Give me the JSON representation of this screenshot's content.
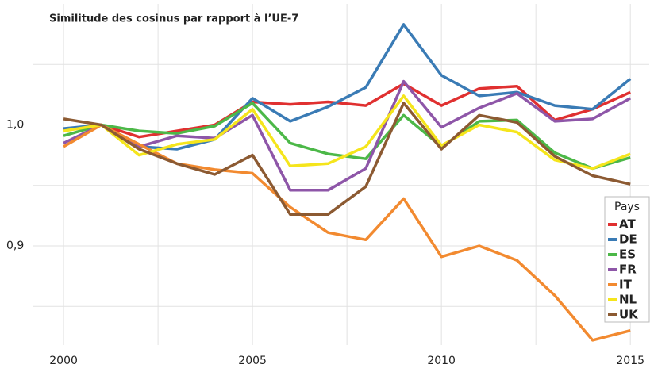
{
  "chart_data": {
    "type": "line",
    "title": "Similitude des cosinus par rapport à l’UE-7",
    "x": [
      2000,
      2001,
      2002,
      2003,
      2004,
      2005,
      2006,
      2007,
      2008,
      2009,
      2010,
      2011,
      2012,
      2013,
      2014,
      2015
    ],
    "series": [
      {
        "name": "AT",
        "color": "#e03030",
        "values": [
          0.996,
          1.0,
          0.99,
          0.995,
          1.0,
          1.019,
          1.017,
          1.019,
          1.016,
          1.034,
          1.016,
          1.03,
          1.032,
          1.004,
          1.013,
          1.027
        ]
      },
      {
        "name": "DE",
        "color": "#3a7bb5",
        "values": [
          0.997,
          1.0,
          0.982,
          0.98,
          0.988,
          1.022,
          1.003,
          1.015,
          1.031,
          1.083,
          1.041,
          1.024,
          1.027,
          1.016,
          1.013,
          1.038
        ]
      },
      {
        "name": "ES",
        "color": "#4cb848",
        "values": [
          0.991,
          1.0,
          0.995,
          0.993,
          0.999,
          1.018,
          0.985,
          0.976,
          0.972,
          1.008,
          0.982,
          1.003,
          1.004,
          0.977,
          0.964,
          0.973
        ]
      },
      {
        "name": "FR",
        "color": "#8e56a8",
        "values": [
          0.985,
          1.0,
          0.982,
          0.991,
          0.989,
          1.008,
          0.946,
          0.946,
          0.964,
          1.036,
          0.998,
          1.014,
          1.026,
          1.003,
          1.005,
          1.022
        ]
      },
      {
        "name": "IT",
        "color": "#f28a30",
        "values": [
          0.982,
          1.0,
          0.984,
          0.968,
          0.963,
          0.96,
          0.932,
          0.911,
          0.905,
          0.939,
          0.891,
          0.9,
          0.888,
          0.859,
          0.822,
          0.83
        ]
      },
      {
        "name": "NL",
        "color": "#f5e51c",
        "values": [
          0.995,
          1.0,
          0.975,
          0.984,
          0.988,
          1.013,
          0.966,
          0.968,
          0.982,
          1.024,
          0.983,
          1.0,
          0.994,
          0.971,
          0.964,
          0.976
        ]
      },
      {
        "name": "UK",
        "color": "#8c5a32",
        "values": [
          1.005,
          1.0,
          0.98,
          0.968,
          0.959,
          0.975,
          0.926,
          0.926,
          0.949,
          1.018,
          0.98,
          1.008,
          1.002,
          0.974,
          0.958,
          0.951
        ]
      }
    ],
    "xlim": [
      1999.2,
      2015.5
    ],
    "xticks": [
      2000,
      2005,
      2010,
      2015
    ],
    "minor_xticks": [
      2002.5,
      2007.5,
      2012.5
    ],
    "ylim": [
      0.818,
      1.1
    ],
    "yticks": [
      {
        "value": 0.9,
        "label": "0,9"
      },
      {
        "value": 1.0,
        "label": "1,0"
      }
    ],
    "minor_yticks": [
      0.85,
      0.95,
      1.05
    ],
    "reference_line": 1,
    "grid": true,
    "legend_title": "Pays",
    "legend_position": "lower right"
  }
}
